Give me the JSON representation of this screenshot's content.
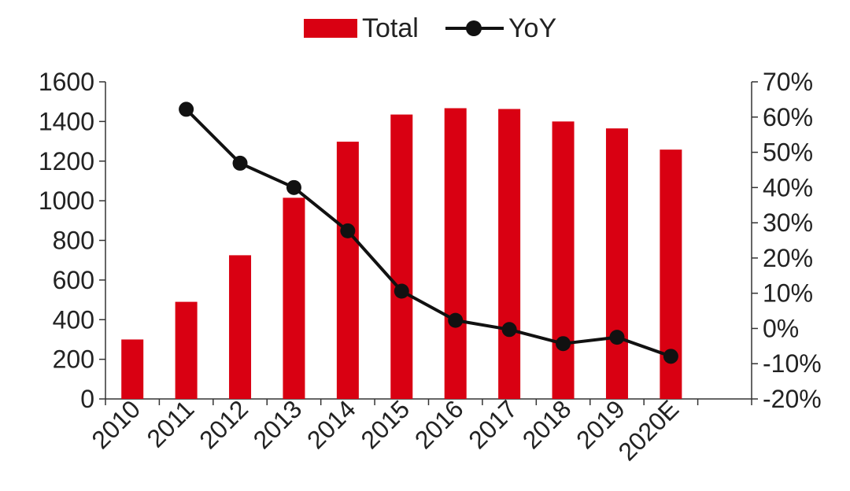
{
  "chart_data": {
    "type": "bar",
    "categories": [
      "2010",
      "2011",
      "2012",
      "2013",
      "2014",
      "2015",
      "2016",
      "2017",
      "2018",
      "2019",
      "2020E"
    ],
    "series": [
      {
        "name": "Total",
        "type": "bar",
        "axis": "left",
        "color": "#d90012",
        "values": [
          300,
          490,
          725,
          1015,
          1298,
          1435,
          1467,
          1463,
          1400,
          1365,
          1258
        ]
      },
      {
        "name": "YoY",
        "type": "line",
        "axis": "right",
        "color": "#111111",
        "values": [
          null,
          0.622,
          0.469,
          0.4,
          0.277,
          0.106,
          0.023,
          -0.003,
          -0.043,
          -0.025,
          -0.079
        ]
      }
    ],
    "left_axis": {
      "ylim": [
        0,
        1600
      ],
      "ticks": [
        "0",
        "200",
        "400",
        "600",
        "800",
        "1000",
        "1200",
        "1400",
        "1600"
      ]
    },
    "right_axis": {
      "ylim": [
        -0.2,
        0.7
      ],
      "ticks": [
        "-20%",
        "-10%",
        "0%",
        "10%",
        "20%",
        "30%",
        "40%",
        "50%",
        "60%",
        "70%"
      ]
    },
    "legend": {
      "position": "top-center",
      "items": [
        "Total",
        "YoY"
      ]
    },
    "grid": false
  }
}
